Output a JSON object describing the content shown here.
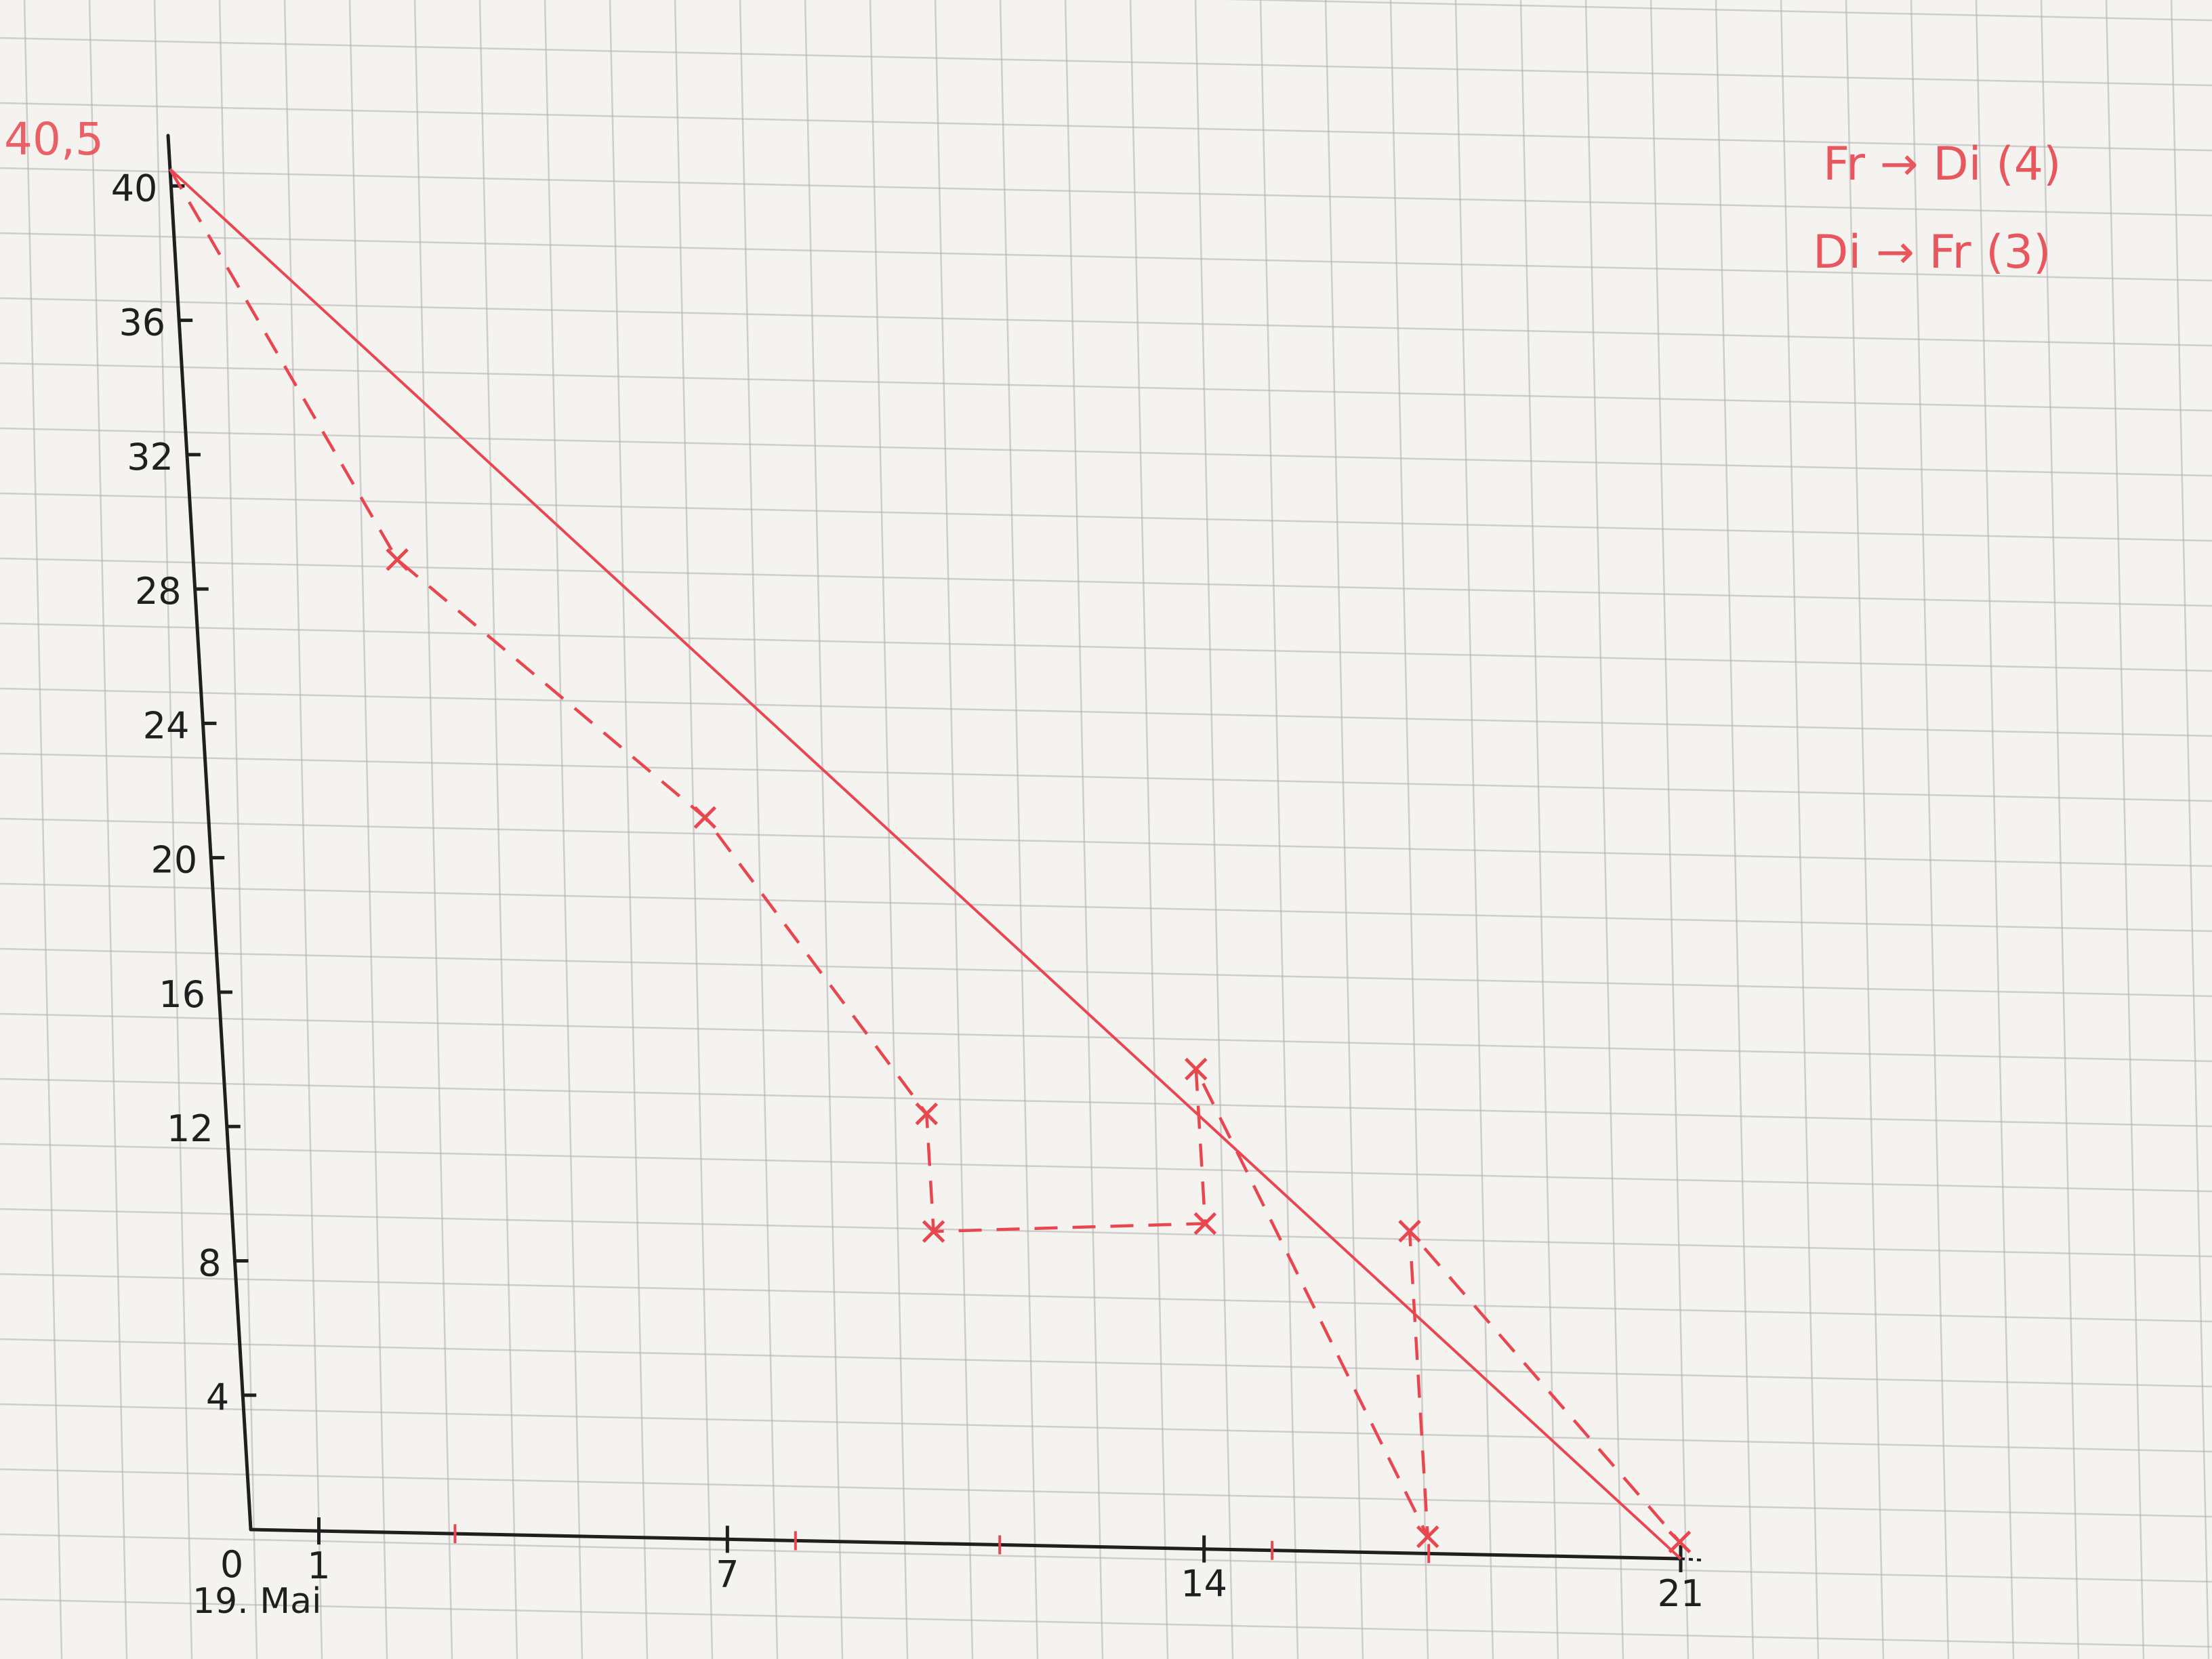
{
  "chart_data": {
    "type": "line",
    "title": "",
    "xlabel": "",
    "ylabel": "",
    "xlim": [
      0,
      21
    ],
    "ylim": [
      0,
      40
    ],
    "x_ticks": [
      {
        "value": 0,
        "label": "0"
      },
      {
        "value": 1,
        "label": "1"
      },
      {
        "value": 7,
        "label": "7"
      },
      {
        "value": 14,
        "label": "14"
      },
      {
        "value": 21,
        "label": "21"
      }
    ],
    "x_start_label": "19. Mai",
    "y_ticks": [
      {
        "value": 4,
        "label": "4"
      },
      {
        "value": 8,
        "label": "8"
      },
      {
        "value": 12,
        "label": "12"
      },
      {
        "value": 16,
        "label": "16"
      },
      {
        "value": 20,
        "label": "20"
      },
      {
        "value": 24,
        "label": "24"
      },
      {
        "value": 28,
        "label": "28"
      },
      {
        "value": 32,
        "label": "32"
      },
      {
        "value": 36,
        "label": "36"
      },
      {
        "value": 40,
        "label": "40"
      }
    ],
    "top_annotation": "40,5",
    "series": [
      {
        "style": "ideal",
        "points": [
          [
            0,
            40.5
          ],
          [
            21,
            0
          ]
        ]
      },
      {
        "style": "actual",
        "points": [
          [
            0,
            40.5
          ],
          [
            3,
            29
          ],
          [
            7.3,
            21.5
          ],
          [
            10.3,
            12.8
          ],
          [
            10.3,
            9.3
          ],
          [
            14.3,
            9.7
          ],
          [
            14.3,
            14.3
          ],
          [
            17.3,
            0.5
          ],
          [
            17.3,
            9.6
          ],
          [
            21,
            0.5
          ]
        ]
      }
    ],
    "legend_notes": [
      "Fr → Di (4)",
      "Di → Fr (3)"
    ],
    "grid": true,
    "colors": {
      "axes": "#1f1f1f",
      "series": "#e8474f",
      "grid": "#b4b4b4",
      "paper": "#f4f3f0"
    }
  }
}
